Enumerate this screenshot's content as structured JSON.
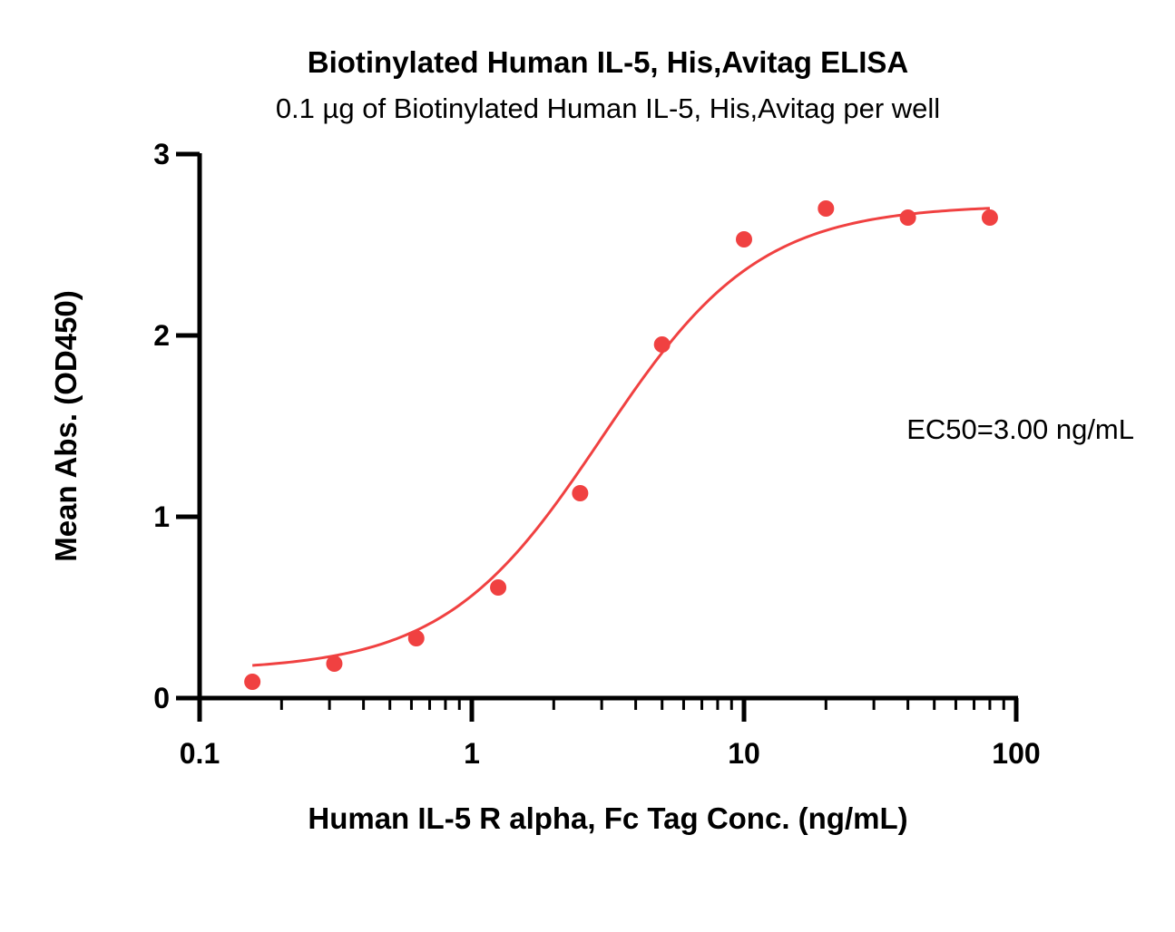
{
  "chart_data": {
    "type": "scatter",
    "title": "Biotinylated Human IL-5, His,Avitag ELISA",
    "subtitle": "0.1 µg of Biotinylated Human IL-5, His,Avitag per well",
    "xlabel": "Human IL-5 R alpha, Fc Tag Conc. (ng/mL)",
    "ylabel": "Mean Abs. (OD450)",
    "x_scale": "log",
    "xlim": [
      0.1,
      100
    ],
    "ylim": [
      0,
      3
    ],
    "x_ticks": [
      0.1,
      1,
      10,
      100
    ],
    "x_tick_labels": [
      "0.1",
      "1",
      "10",
      "100"
    ],
    "y_ticks": [
      0,
      1,
      2,
      3
    ],
    "y_tick_labels": [
      "0",
      "1",
      "2",
      "3"
    ],
    "grid": false,
    "color": "#f04141",
    "points": {
      "x": [
        0.15625,
        0.3125,
        0.625,
        1.25,
        2.5,
        5,
        10,
        20,
        40,
        80
      ],
      "y": [
        0.09,
        0.19,
        0.33,
        0.61,
        1.13,
        1.95,
        2.53,
        2.7,
        2.65,
        2.65
      ]
    },
    "fit": {
      "model": "four-parameter logistic",
      "bottom": 0.15,
      "top": 2.72,
      "ec50": 3.0,
      "hill": 1.5
    },
    "annotation": "EC50=3.00 ng/mL"
  }
}
